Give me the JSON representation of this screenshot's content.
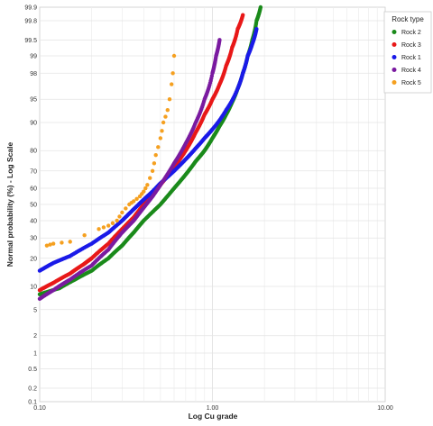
{
  "chart_data": {
    "type": "scatter",
    "xlabel": "Log Cu grade",
    "ylabel": "Normal probability (%) - Log Scale",
    "x_scale": "log",
    "y_scale": "normal-probability",
    "xlim": [
      0.1,
      10
    ],
    "ylim": [
      0.1,
      99.9
    ],
    "grid": true,
    "legend": {
      "title": "Rock type",
      "position": "top-right"
    },
    "x_ticks": [
      "0.10",
      "1.00",
      "10.00"
    ],
    "y_ticks": [
      "0.1",
      "0.2",
      "0.5",
      "1",
      "2",
      "5",
      "10",
      "20",
      "30",
      "40",
      "50",
      "60",
      "70",
      "80",
      "90",
      "95",
      "98",
      "99",
      "99.5",
      "99.8",
      "99.9"
    ],
    "series": [
      {
        "name": "Rock 2",
        "color": "#1a8a1a",
        "points": [
          [
            0.1,
            8
          ],
          [
            0.13,
            9.5
          ],
          [
            0.16,
            12
          ],
          [
            0.2,
            15
          ],
          [
            0.25,
            20
          ],
          [
            0.3,
            26
          ],
          [
            0.35,
            33
          ],
          [
            0.4,
            40
          ],
          [
            0.5,
            50
          ],
          [
            0.6,
            60
          ],
          [
            0.7,
            68
          ],
          [
            0.8,
            75
          ],
          [
            0.9,
            80
          ],
          [
            1.0,
            85
          ],
          [
            1.1,
            89
          ],
          [
            1.2,
            92
          ],
          [
            1.3,
            94.5
          ],
          [
            1.4,
            96.5
          ],
          [
            1.5,
            98
          ],
          [
            1.6,
            99
          ],
          [
            1.7,
            99.5
          ],
          [
            1.8,
            99.8
          ],
          [
            1.9,
            99.9
          ]
        ]
      },
      {
        "name": "Rock 3",
        "color": "#e81818",
        "points": [
          [
            0.1,
            9
          ],
          [
            0.12,
            11
          ],
          [
            0.15,
            14
          ],
          [
            0.18,
            17.5
          ],
          [
            0.2,
            20
          ],
          [
            0.25,
            27
          ],
          [
            0.3,
            35
          ],
          [
            0.35,
            42
          ],
          [
            0.4,
            50
          ],
          [
            0.45,
            56
          ],
          [
            0.5,
            62
          ],
          [
            0.6,
            72
          ],
          [
            0.7,
            80
          ],
          [
            0.8,
            87
          ],
          [
            0.9,
            92
          ],
          [
            1.0,
            95
          ],
          [
            1.1,
            97
          ],
          [
            1.2,
            98.5
          ],
          [
            1.3,
            99.3
          ],
          [
            1.4,
            99.7
          ],
          [
            1.5,
            99.85
          ]
        ]
      },
      {
        "name": "Rock 1",
        "color": "#1a1ae8",
        "points": [
          [
            0.1,
            15
          ],
          [
            0.12,
            18
          ],
          [
            0.15,
            21
          ],
          [
            0.2,
            27
          ],
          [
            0.25,
            33
          ],
          [
            0.3,
            40
          ],
          [
            0.35,
            47
          ],
          [
            0.4,
            53
          ],
          [
            0.45,
            58
          ],
          [
            0.5,
            63
          ],
          [
            0.6,
            70
          ],
          [
            0.7,
            76
          ],
          [
            0.8,
            81
          ],
          [
            0.9,
            85
          ],
          [
            1.0,
            88
          ],
          [
            1.2,
            93
          ],
          [
            1.4,
            96.5
          ],
          [
            1.5,
            98
          ],
          [
            1.6,
            99
          ],
          [
            1.7,
            99.4
          ],
          [
            1.8,
            99.7
          ]
        ]
      },
      {
        "name": "Rock 4",
        "color": "#7a1aa0",
        "points": [
          [
            0.1,
            7
          ],
          [
            0.12,
            9
          ],
          [
            0.15,
            12
          ],
          [
            0.2,
            17
          ],
          [
            0.25,
            24
          ],
          [
            0.3,
            33
          ],
          [
            0.35,
            40
          ],
          [
            0.4,
            48
          ],
          [
            0.45,
            55
          ],
          [
            0.5,
            62
          ],
          [
            0.6,
            74
          ],
          [
            0.7,
            83
          ],
          [
            0.8,
            90
          ],
          [
            0.9,
            95
          ],
          [
            1.0,
            98
          ],
          [
            1.05,
            99
          ],
          [
            1.1,
            99.5
          ]
        ]
      },
      {
        "name": "Rock 5",
        "color": "#f5a020",
        "points": [
          [
            0.11,
            26
          ],
          [
            0.12,
            27
          ],
          [
            0.15,
            28
          ],
          [
            0.22,
            35
          ],
          [
            0.25,
            37
          ],
          [
            0.28,
            40
          ],
          [
            0.3,
            45
          ],
          [
            0.33,
            50
          ],
          [
            0.35,
            52
          ],
          [
            0.38,
            55
          ],
          [
            0.4,
            58
          ],
          [
            0.42,
            62
          ],
          [
            0.45,
            70
          ],
          [
            0.47,
            78
          ],
          [
            0.5,
            85
          ],
          [
            0.52,
            90
          ],
          [
            0.55,
            93
          ],
          [
            0.58,
            97
          ],
          [
            0.6,
            99
          ]
        ]
      }
    ]
  }
}
